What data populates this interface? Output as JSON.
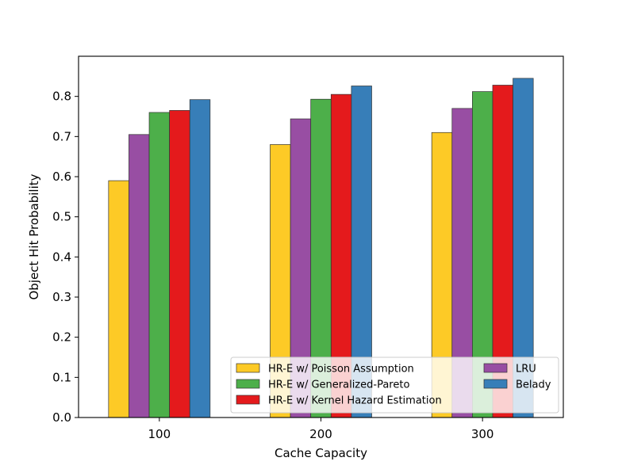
{
  "chart_data": {
    "type": "bar",
    "title": "",
    "xlabel": "Cache Capacity",
    "ylabel": "Object Hit Probability",
    "categories": [
      "100",
      "200",
      "300"
    ],
    "ylim": [
      0,
      0.9
    ],
    "yticks": [
      "0.0",
      "0.1",
      "0.2",
      "0.3",
      "0.4",
      "0.5",
      "0.6",
      "0.7",
      "0.8"
    ],
    "grid": false,
    "legend_position": "lower-right",
    "series": [
      {
        "name": "HR-E w/ Poisson Assumption",
        "color": "#fdca26",
        "values": [
          0.59,
          0.68,
          0.71
        ]
      },
      {
        "name": "LRU",
        "color": "#984ea3",
        "values": [
          0.705,
          0.744,
          0.77
        ]
      },
      {
        "name": "HR-E w/ Generalized-Pareto",
        "color": "#4daf4a",
        "values": [
          0.76,
          0.793,
          0.812
        ]
      },
      {
        "name": "HR-E w/ Kernel Hazard Estimation",
        "color": "#e41a1c",
        "values": [
          0.765,
          0.805,
          0.828
        ]
      },
      {
        "name": "Belady",
        "color": "#377eb8",
        "values": [
          0.792,
          0.826,
          0.845
        ]
      }
    ],
    "legend_order": [
      0,
      2,
      3,
      1,
      4
    ]
  }
}
